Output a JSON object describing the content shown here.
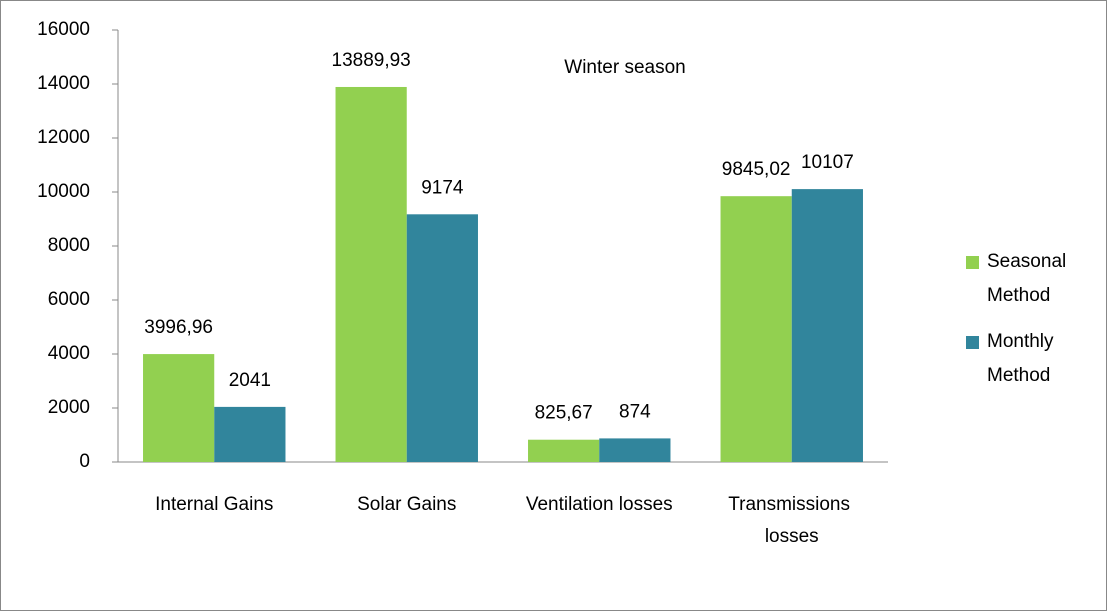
{
  "chart_data": {
    "type": "bar",
    "title": "Winter season",
    "categories": [
      "Internal Gains",
      "Solar Gains",
      "Ventilation losses",
      "Transmissions losses"
    ],
    "series": [
      {
        "name": "Seasonal Method",
        "color": "#92d050",
        "values": [
          3996.96,
          13889.93,
          825.67,
          9845.02
        ],
        "value_labels": [
          "3996,96",
          "13889,93",
          "825,67",
          "9845,02"
        ]
      },
      {
        "name": "Monthly Method",
        "color": "#31859c",
        "values": [
          2041,
          9174,
          874,
          10107
        ]
      }
    ],
    "ylim": [
      0,
      16000
    ],
    "yticks": [
      0,
      2000,
      4000,
      6000,
      8000,
      10000,
      12000,
      14000,
      16000
    ],
    "legend": "right"
  }
}
